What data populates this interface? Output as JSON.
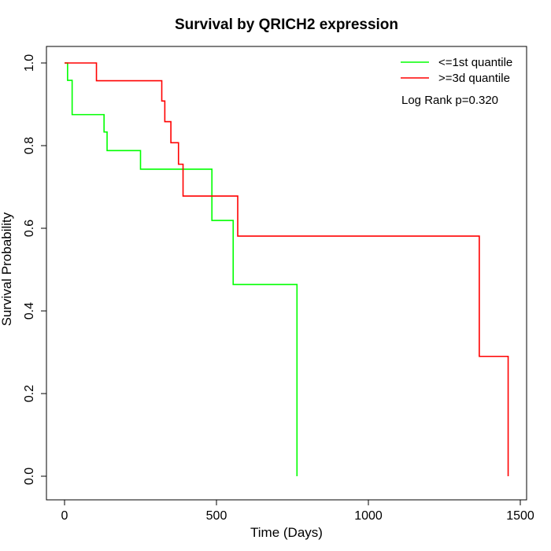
{
  "chart_data": {
    "type": "line",
    "title": "Survival by QRICH2 expression",
    "xlabel": "Time (Days)",
    "ylabel": "Survival Probability",
    "xlim": [
      0,
      1500
    ],
    "ylim": [
      0,
      1
    ],
    "x_ticks": [
      0,
      500,
      1000,
      1500
    ],
    "x_tick_labels": [
      "0",
      "500",
      "1000",
      "1500"
    ],
    "y_ticks": [
      0,
      0.2,
      0.4,
      0.6,
      0.8,
      1
    ],
    "y_tick_labels": [
      "0.0",
      "0.2",
      "0.4",
      "0.6",
      "0.8",
      "1.0"
    ],
    "legend_position": "top-right",
    "annotation": "Log Rank p=0.320",
    "series": [
      {
        "name": "<=1st quantile",
        "color": "#00ff00",
        "step": true,
        "x": [
          0,
          10,
          25,
          130,
          140,
          250,
          485,
          555,
          765,
          765
        ],
        "y": [
          1.0,
          0.958,
          0.875,
          0.833,
          0.788,
          0.743,
          0.619,
          0.464,
          0.464,
          0.0
        ]
      },
      {
        "name": ">=3d quantile",
        "color": "#ff0000",
        "step": true,
        "x": [
          0,
          105,
          320,
          330,
          350,
          375,
          390,
          570,
          1365,
          1460,
          1460
        ],
        "y": [
          1.0,
          0.957,
          0.908,
          0.858,
          0.807,
          0.755,
          0.678,
          0.581,
          0.29,
          0.29,
          0.0
        ]
      }
    ]
  }
}
